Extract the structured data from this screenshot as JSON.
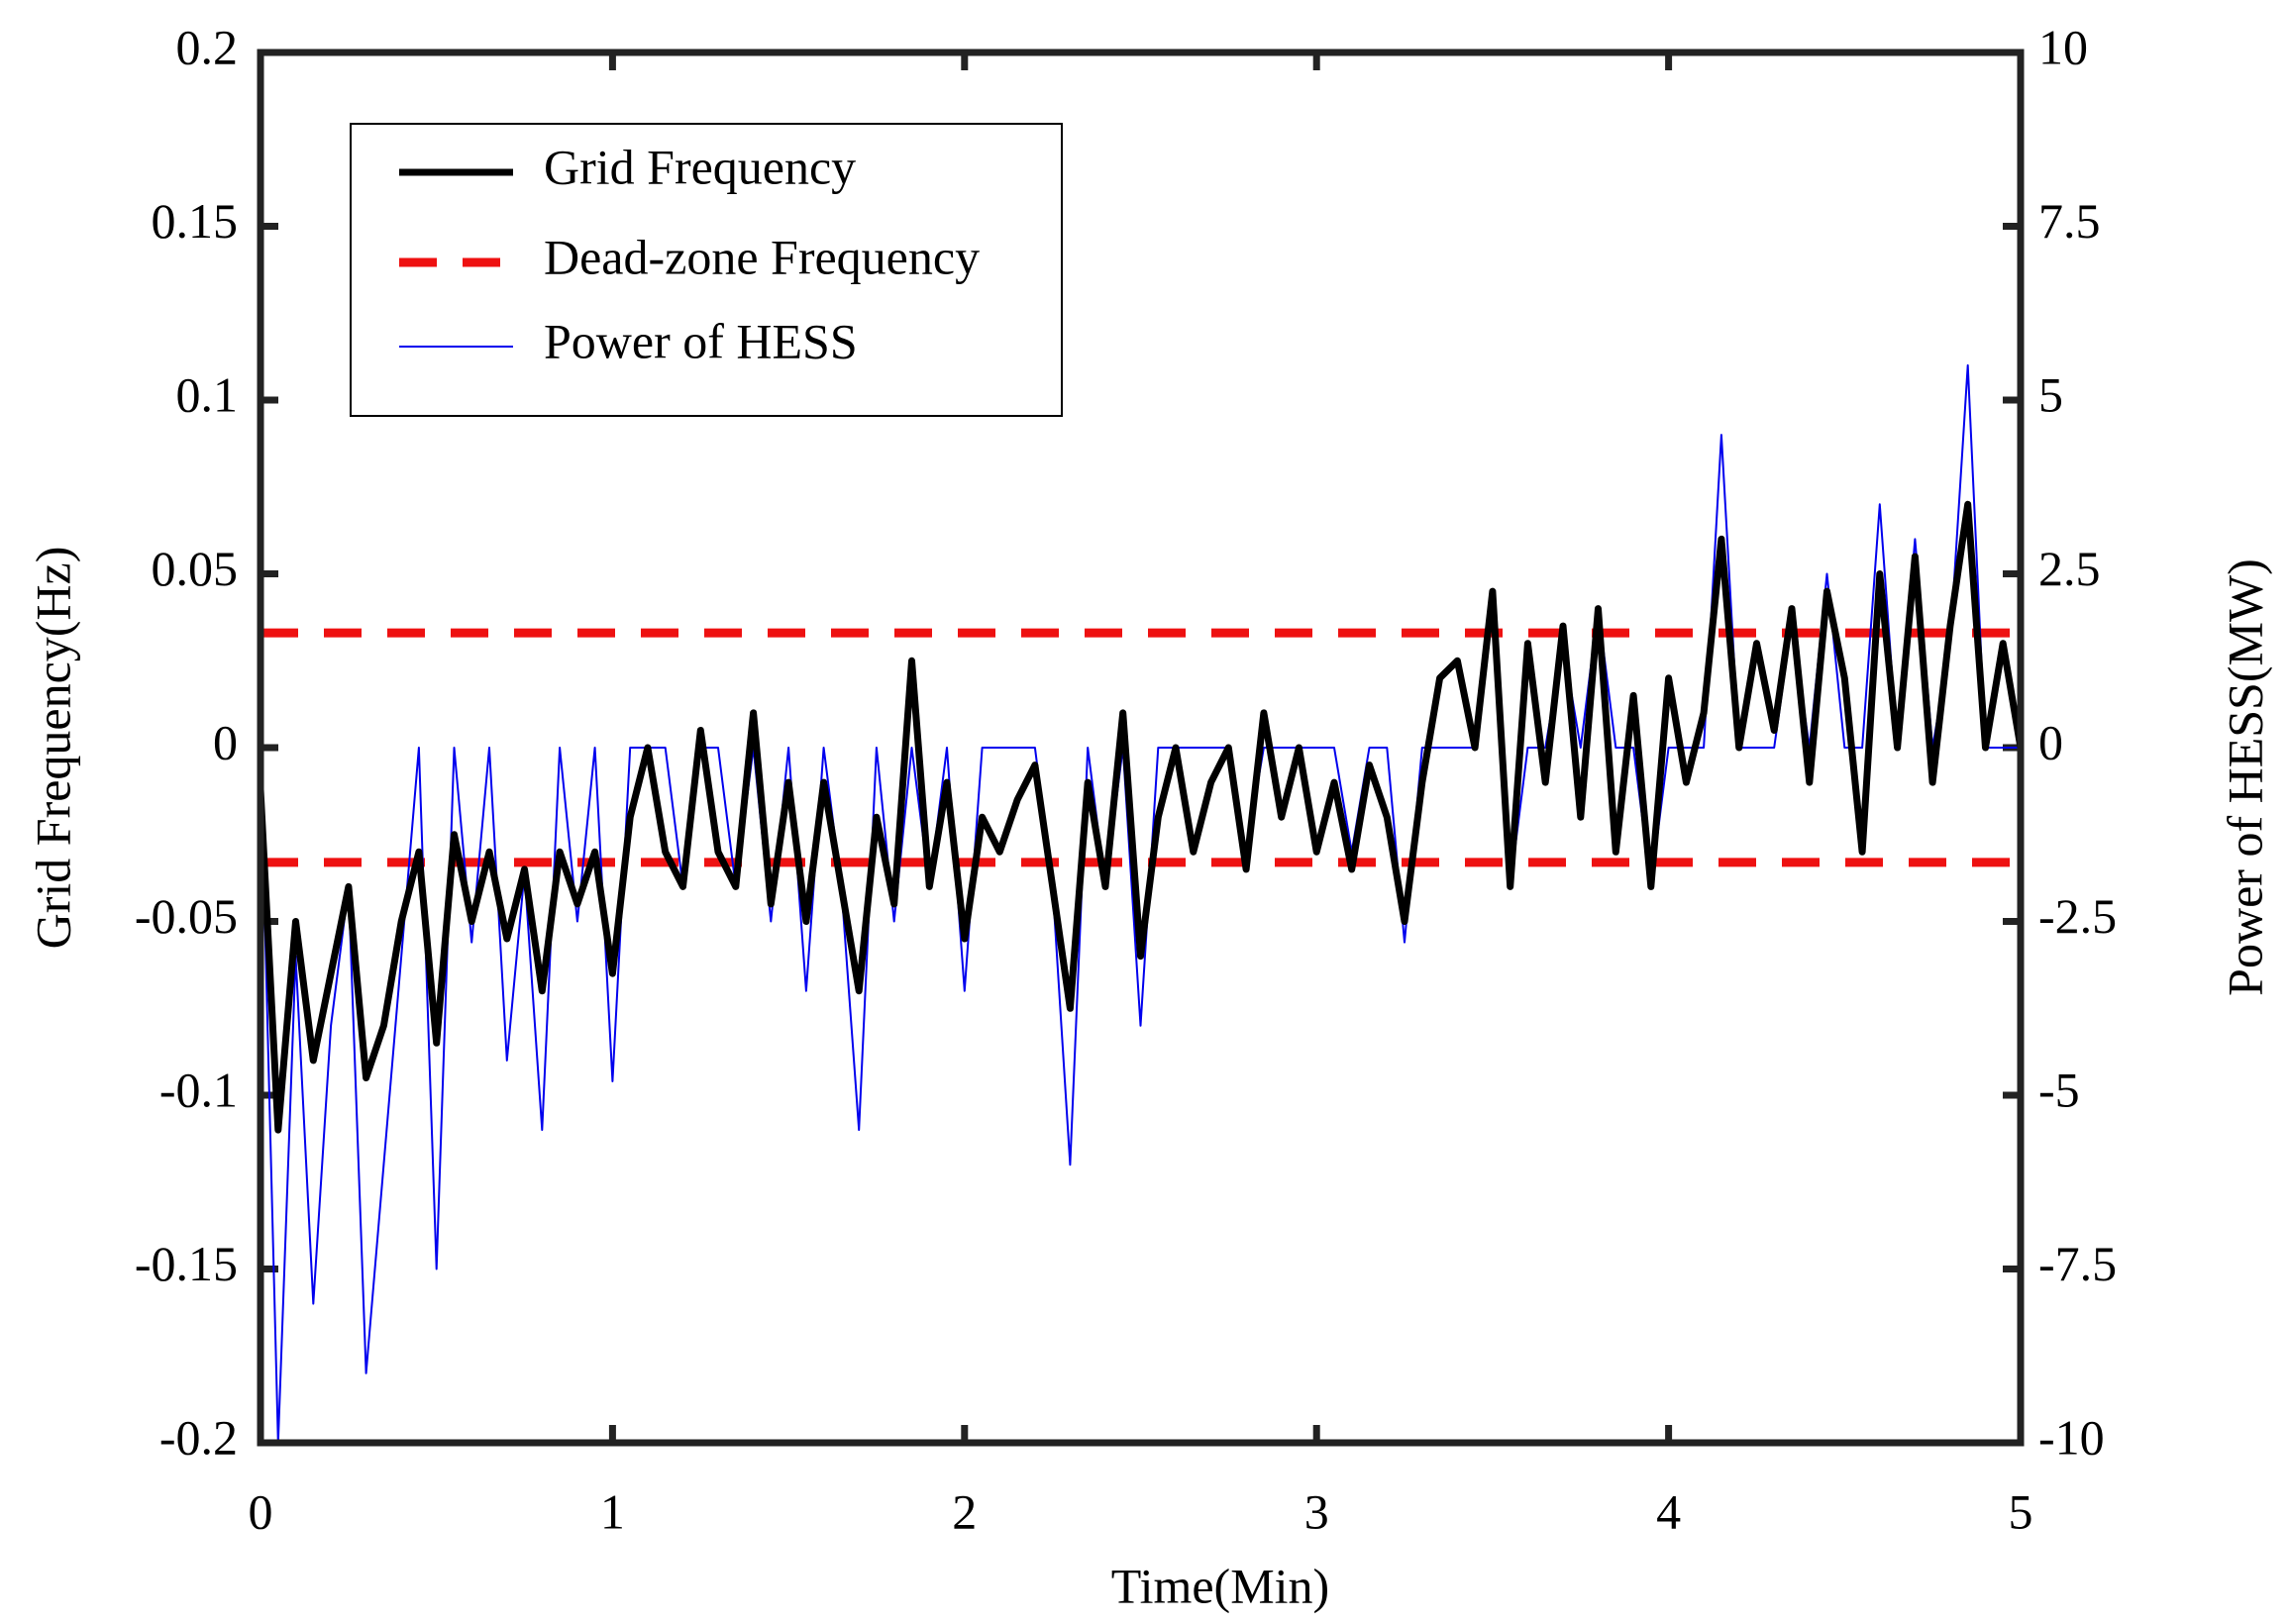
{
  "chart_data": {
    "type": "line",
    "xlabel": "Time(Min)",
    "ylabel": "Grid Frequency(Hz)",
    "y2label": "Power of HESS(MW)",
    "x": [
      0,
      0.05,
      0.1,
      0.15,
      0.2,
      0.25,
      0.3,
      0.35,
      0.4,
      0.45,
      0.5,
      0.55,
      0.6,
      0.65,
      0.7,
      0.75,
      0.8,
      0.85,
      0.9,
      0.95,
      1.0,
      1.05,
      1.1,
      1.15,
      1.2,
      1.25,
      1.3,
      1.35,
      1.4,
      1.45,
      1.5,
      1.55,
      1.6,
      1.65,
      1.7,
      1.75,
      1.8,
      1.85,
      1.9,
      1.95,
      2.0,
      2.05,
      2.1,
      2.15,
      2.2,
      2.25,
      2.3,
      2.35,
      2.4,
      2.45,
      2.5,
      2.55,
      2.6,
      2.65,
      2.7,
      2.75,
      2.8,
      2.85,
      2.9,
      2.95,
      3.0,
      3.05,
      3.1,
      3.15,
      3.2,
      3.25,
      3.3,
      3.35,
      3.4,
      3.45,
      3.5,
      3.55,
      3.6,
      3.65,
      3.7,
      3.75,
      3.8,
      3.85,
      3.9,
      3.95,
      4.0,
      4.05,
      4.1,
      4.15,
      4.2,
      4.25,
      4.3,
      4.35,
      4.4,
      4.45,
      4.5,
      4.55,
      4.6,
      4.65,
      4.7,
      4.75,
      4.8,
      4.85,
      4.9,
      4.95,
      5.0
    ],
    "series": [
      {
        "name": "Grid Frequency",
        "color": "#000000",
        "width": 7,
        "axis": "y",
        "values": [
          -0.012,
          -0.11,
          -0.05,
          -0.09,
          -0.065,
          -0.04,
          -0.095,
          -0.08,
          -0.05,
          -0.03,
          -0.085,
          -0.025,
          -0.05,
          -0.03,
          -0.055,
          -0.035,
          -0.07,
          -0.03,
          -0.045,
          -0.03,
          -0.065,
          -0.02,
          0.0,
          -0.03,
          -0.04,
          0.005,
          -0.03,
          -0.04,
          0.01,
          -0.045,
          -0.01,
          -0.05,
          -0.01,
          -0.04,
          -0.07,
          -0.02,
          -0.045,
          0.025,
          -0.04,
          -0.01,
          -0.055,
          -0.02,
          -0.03,
          -0.015,
          -0.005,
          -0.04,
          -0.075,
          -0.01,
          -0.04,
          0.01,
          -0.06,
          -0.02,
          0.0,
          -0.03,
          -0.01,
          0.0,
          -0.035,
          0.01,
          -0.02,
          0.0,
          -0.03,
          -0.01,
          -0.035,
          -0.005,
          -0.02,
          -0.05,
          -0.01,
          0.02,
          0.025,
          0.0,
          0.045,
          -0.04,
          0.03,
          -0.01,
          0.035,
          -0.02,
          0.04,
          -0.03,
          0.015,
          -0.04,
          0.02,
          -0.01,
          0.01,
          0.06,
          0.0,
          0.03,
          0.005,
          0.04,
          -0.01,
          0.045,
          0.02,
          -0.03,
          0.05,
          0.0,
          0.055,
          -0.01,
          0.035,
          0.07,
          0.0,
          0.03,
          0.0
        ]
      },
      {
        "name": "Power of HESS",
        "color": "#0000ee",
        "width": 2,
        "axis": "y2",
        "values": [
          0,
          -10,
          -3,
          -8,
          -4,
          -2,
          -9,
          -6,
          -3,
          0,
          -7.5,
          0,
          -2.8,
          0,
          -4.5,
          -1.8,
          -5.5,
          0,
          -2.5,
          0,
          -4.8,
          0,
          0,
          0,
          -2,
          0,
          0,
          -2,
          0,
          -2.5,
          0,
          -3.5,
          0,
          -2,
          -5.5,
          0,
          -2.5,
          0,
          -2,
          0,
          -3.5,
          0,
          0,
          0,
          0,
          -2,
          -6,
          0,
          -2,
          0,
          -4,
          0,
          0,
          0,
          0,
          0,
          -1.5,
          0,
          0,
          0,
          0,
          0,
          -1.5,
          0,
          0,
          -2.8,
          0,
          0,
          0,
          0,
          2,
          -2,
          0,
          0,
          1.5,
          0,
          2,
          0,
          0,
          -2,
          0,
          0,
          0,
          4.5,
          0,
          0,
          0,
          1.8,
          0,
          2.5,
          0,
          0,
          3.5,
          0,
          3,
          0,
          1.5,
          5.5,
          0,
          0,
          0
        ]
      }
    ],
    "dead_zone": {
      "name": "Dead-zone Frequency",
      "color": "#ee1111",
      "values": [
        0.033,
        -0.033
      ]
    },
    "xlim": [
      0,
      5
    ],
    "xticks": [
      0,
      1,
      2,
      3,
      4,
      5
    ],
    "ylim": [
      -0.2,
      0.2
    ],
    "yticks": [
      -0.2,
      -0.15,
      -0.1,
      -0.05,
      0,
      0.05,
      0.1,
      0.15,
      0.2
    ],
    "y2lim": [
      -10,
      10
    ],
    "y2ticks": [
      -10,
      -7.5,
      -5,
      -2.5,
      0,
      2.5,
      5,
      7.5,
      10
    ],
    "legend": "upper left"
  }
}
